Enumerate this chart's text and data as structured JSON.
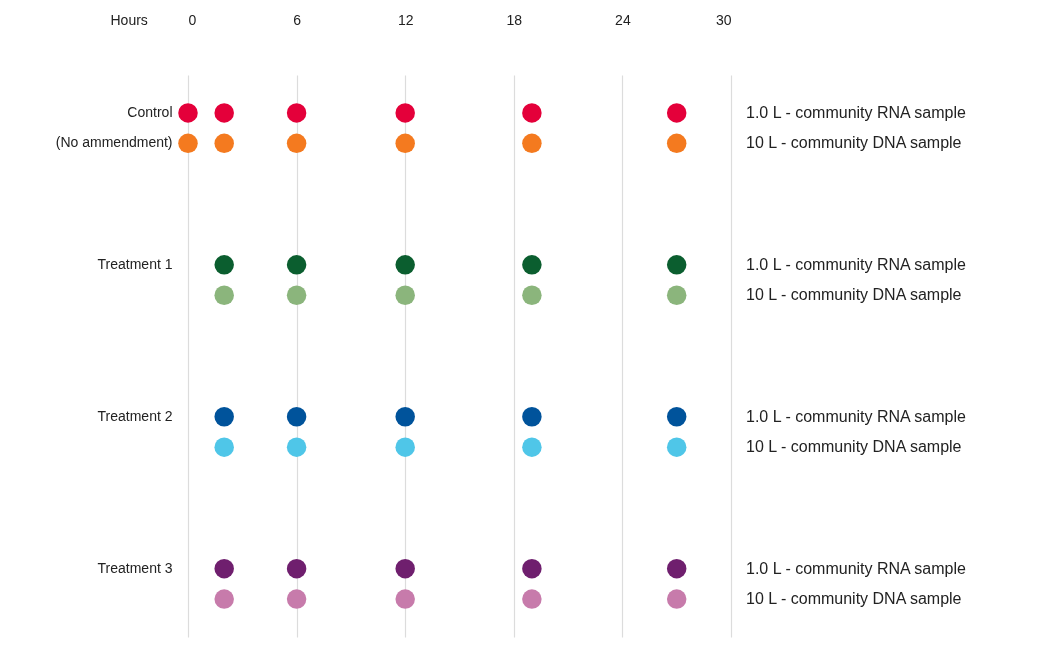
{
  "chart_data": {
    "type": "scatter",
    "orientation": "horizontal",
    "xlabel": "Hours",
    "xlim": [
      0,
      30
    ],
    "xticks": [
      0,
      6,
      12,
      18,
      24,
      30
    ],
    "grid": "x",
    "marker": "circle",
    "categories": [
      "Control\n(No ammendment)",
      null,
      null,
      null,
      null,
      "Treatment 1",
      null,
      null,
      null,
      null,
      "Treatment 2",
      null,
      null,
      null,
      null,
      "Treatment 3",
      null
    ],
    "y2_categories": [
      "1.0 L - community RNA sample",
      "10 L - community DNA sample",
      null,
      null,
      null,
      "1.0 L - community RNA sample",
      "10 L - community DNA sample",
      null,
      null,
      null,
      "1.0 L - community RNA sample",
      "10 L - community DNA sample",
      null,
      null,
      null,
      "1.0 L - community RNA sample",
      "10 L - community DNA sample"
    ],
    "series": [
      {
        "values": [
          0,
          0,
          null,
          null,
          null,
          null,
          null,
          null,
          null,
          null,
          null,
          null,
          null,
          null,
          null,
          null,
          null
        ],
        "colors": [
          "#e4003a",
          "#f47a1f",
          null,
          null,
          null,
          null,
          null,
          null,
          null,
          null,
          null,
          null,
          null,
          null,
          null,
          null,
          null
        ]
      },
      {
        "values": [
          2,
          2,
          null,
          null,
          null,
          2,
          2,
          null,
          null,
          null,
          2,
          2,
          null,
          null,
          null,
          2,
          2
        ],
        "colors": [
          "#e4003a",
          "#f47a1f",
          null,
          null,
          null,
          "#0b5e2f",
          "#8bb57c",
          null,
          null,
          null,
          "#00539b",
          "#4fc6e8",
          null,
          null,
          null,
          "#6f1f6e",
          "#c77bab"
        ]
      },
      {
        "values": [
          6,
          6,
          null,
          null,
          null,
          6,
          6,
          null,
          null,
          null,
          6,
          6,
          null,
          null,
          null,
          6,
          6
        ],
        "colors": [
          "#e4003a",
          "#f47a1f",
          null,
          null,
          null,
          "#0b5e2f",
          "#8bb57c",
          null,
          null,
          null,
          "#00539b",
          "#4fc6e8",
          null,
          null,
          null,
          "#6f1f6e",
          "#c77bab"
        ]
      },
      {
        "values": [
          12,
          12,
          null,
          null,
          null,
          12,
          12,
          null,
          null,
          null,
          12,
          12,
          null,
          null,
          null,
          12,
          12
        ],
        "colors": [
          "#e4003a",
          "#f47a1f",
          null,
          null,
          null,
          "#0b5e2f",
          "#8bb57c",
          null,
          null,
          null,
          "#00539b",
          "#4fc6e8",
          null,
          null,
          null,
          "#6f1f6e",
          "#c77bab"
        ]
      },
      {
        "values": [
          19,
          19,
          null,
          null,
          null,
          19,
          19,
          null,
          null,
          null,
          19,
          19,
          null,
          null,
          null,
          19,
          19
        ],
        "colors": [
          "#e4003a",
          "#f47a1f",
          null,
          null,
          null,
          "#0b5e2f",
          "#8bb57c",
          null,
          null,
          null,
          "#00539b",
          "#4fc6e8",
          null,
          null,
          null,
          "#6f1f6e",
          "#c77bab"
        ]
      },
      {
        "values": [
          27,
          27,
          null,
          null,
          null,
          27,
          27,
          null,
          null,
          null,
          27,
          27,
          null,
          null,
          null,
          27,
          27
        ],
        "colors": [
          "#e4003a",
          "#f47a1f",
          null,
          null,
          null,
          "#0b5e2f",
          "#8bb57c",
          null,
          null,
          null,
          "#00539b",
          "#4fc6e8",
          null,
          null,
          null,
          "#6f1f6e",
          "#c77bab"
        ]
      }
    ]
  }
}
